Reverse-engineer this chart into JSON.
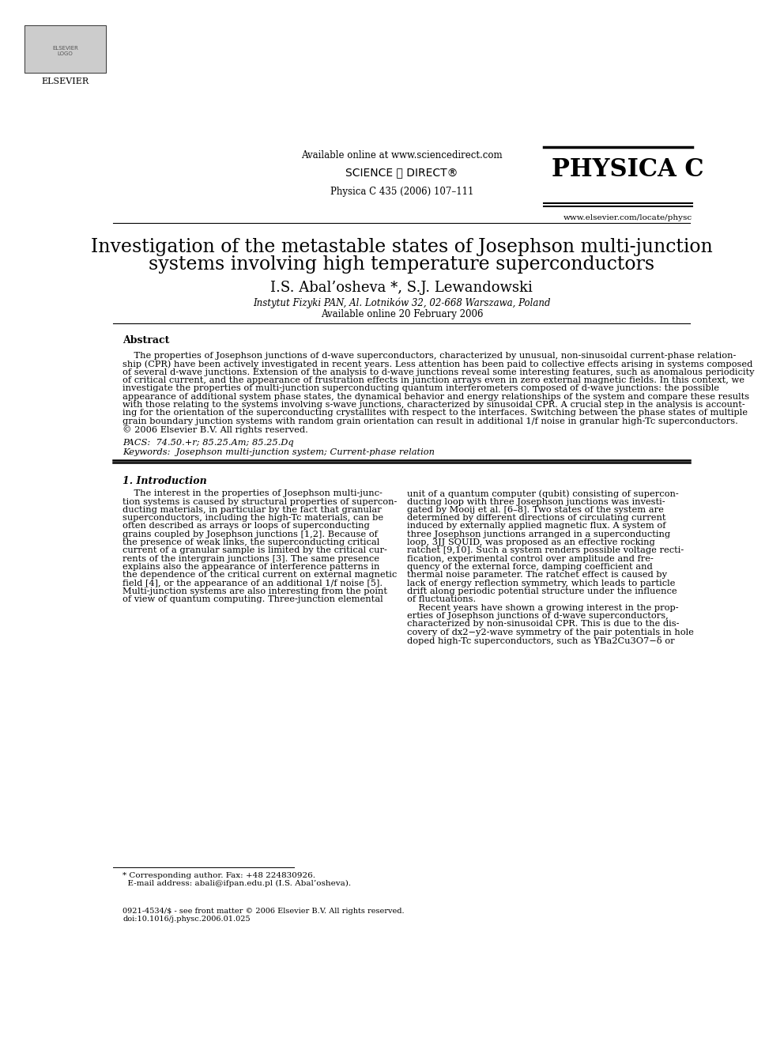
{
  "bg_color": "#ffffff",
  "title_line1": "Investigation of the metastable states of Josephson multi-junction",
  "title_line2": "systems involving high temperature superconductors",
  "authors": "I.S. Abal’osheva *, S.J. Lewandowski",
  "affiliation": "Instytut Fizyki PAN, Al. Lotników 32, 02-668 Warszawa, Poland",
  "online_date": "Available online 20 February 2006",
  "journal_info": "Physica C 435 (2006) 107–111",
  "available_online": "Available online at www.sciencedirect.com",
  "journal_name": "PHYSICA C",
  "website": "www.elsevier.com/locate/physc",
  "abstract_title": "Abstract",
  "pacs": "PACS:  74.50.+r; 85.25.Am; 85.25.Dq",
  "keywords": "Keywords:  Josephson multi-junction system; Current-phase relation",
  "footnote_line1": "* Corresponding author. Fax: +48 224830926.",
  "footnote_line2": "  E-mail address: abali@ifpan.edu.pl (I.S. Abal’osheva).",
  "copyright1": "0921-4534/$ - see front matter © 2006 Elsevier B.V. All rights reserved.",
  "copyright2": "doi:10.1016/j.physc.2006.01.025",
  "abstract_lines": [
    "    The properties of Josephson junctions of d-wave superconductors, characterized by unusual, non-sinusoidal current-phase relation-",
    "ship (CPR) have been actively investigated in recent years. Less attention has been paid to collective effects arising in systems composed",
    "of several d-wave junctions. Extension of the analysis to d-wave junctions reveal some interesting features, such as anomalous periodicity",
    "of critical current, and the appearance of frustration effects in junction arrays even in zero external magnetic fields. In this context, we",
    "investigate the properties of multi-junction superconducting quantum interferometers composed of d-wave junctions: the possible",
    "appearance of additional system phase states, the dynamical behavior and energy relationships of the system and compare these results",
    "with those relating to the systems involving s-wave junctions, characterized by sinusoidal CPR. A crucial step in the analysis is account-",
    "ing for the orientation of the superconducting crystallites with respect to the interfaces. Switching between the phase states of multiple",
    "grain boundary junction systems with random grain orientation can result in additional 1/f noise in granular high-Tc superconductors.",
    "© 2006 Elsevier B.V. All rights reserved."
  ],
  "col1_lines": [
    "    The interest in the properties of Josephson multi-junc-",
    "tion systems is caused by structural properties of supercon-",
    "ducting materials, in particular by the fact that granular",
    "superconductors, including the high-Tc materials, can be",
    "often described as arrays or loops of superconducting",
    "grains coupled by Josephson junctions [1,2]. Because of",
    "the presence of weak links, the superconducting critical",
    "current of a granular sample is limited by the critical cur-",
    "rents of the intergrain junctions [3]. The same presence",
    "explains also the appearance of interference patterns in",
    "the dependence of the critical current on external magnetic",
    "field [4], or the appearance of an additional 1/f noise [5].",
    "Multi-junction systems are also interesting from the point",
    "of view of quantum computing. Three-junction elemental"
  ],
  "col2_lines": [
    "unit of a quantum computer (qubit) consisting of supercon-",
    "ducting loop with three Josephson junctions was investi-",
    "gated by Mooij et al. [6–8]. Two states of the system are",
    "determined by different directions of circulating current",
    "induced by externally applied magnetic flux. A system of",
    "three Josephson junctions arranged in a superconducting",
    "loop, 3JJ SQUID, was proposed as an effective rocking",
    "ratchet [9,10]. Such a system renders possible voltage recti-",
    "fication, experimental control over amplitude and fre-",
    "quency of the external force, damping coefficient and",
    "thermal noise parameter. The ratchet effect is caused by",
    "lack of energy reflection symmetry, which leads to particle",
    "drift along periodic potential structure under the influence",
    "of fluctuations.",
    "    Recent years have shown a growing interest in the prop-",
    "erties of Josephson junctions of d-wave superconductors,",
    "characterized by non-sinusoidal CPR. This is due to the dis-",
    "covery of dx2−y2-wave symmetry of the pair potentials in hole",
    "doped high-Tc superconductors, such as YBa2Cu3O7−δ or"
  ]
}
